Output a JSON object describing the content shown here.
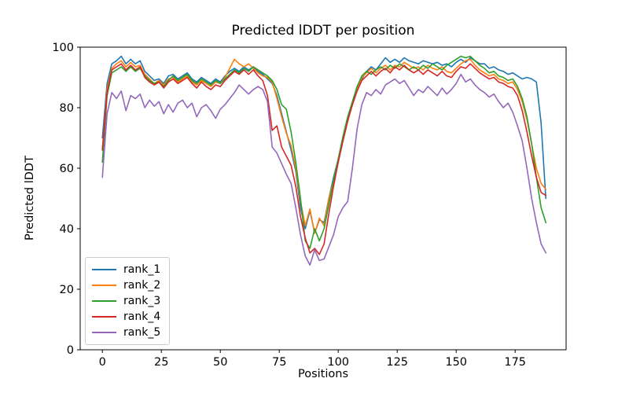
{
  "chart_data": {
    "type": "line",
    "title": "Predicted lDDT per position",
    "xlabel": "Positions",
    "ylabel": "Predicted lDDT",
    "xlim": [
      -9.4,
      196.6
    ],
    "ylim": [
      0,
      100
    ],
    "xticks": [
      0,
      25,
      50,
      75,
      100,
      125,
      150,
      175
    ],
    "yticks": [
      0,
      20,
      40,
      60,
      80,
      100
    ],
    "grid": false,
    "legend_position": "lower-left",
    "x_start": 0,
    "x_step": 2,
    "series": [
      {
        "name": "rank_1",
        "color": "#1f77b4",
        "values": [
          70,
          88,
          94.5,
          95.5,
          97,
          94.5,
          96,
          94.5,
          95.5,
          92,
          90.5,
          89,
          89.5,
          88,
          90.5,
          91,
          89.5,
          90.5,
          91.5,
          89.5,
          88.5,
          90,
          89,
          88,
          89.5,
          88.5,
          90.5,
          92,
          93,
          92,
          93.5,
          92.5,
          93.5,
          92,
          91,
          89.5,
          88,
          84,
          78,
          72,
          66,
          59,
          47,
          40,
          46,
          38.5,
          43,
          42,
          50,
          57,
          63,
          70,
          76,
          81,
          86,
          89.5,
          92,
          93.5,
          92.5,
          94.5,
          96.5,
          95,
          96,
          95,
          96.5,
          95.5,
          95,
          94.5,
          95.5,
          95,
          94.5,
          95,
          94,
          94.5,
          93.5,
          95,
          96,
          95,
          96.5,
          95.5,
          94.5,
          94.5,
          93,
          93.5,
          92.5,
          92,
          91,
          91.5,
          90.5,
          89.5,
          90,
          89.5,
          88.5,
          75,
          50
        ]
      },
      {
        "name": "rank_2",
        "color": "#ff7f0e",
        "values": [
          66,
          86,
          93,
          94.5,
          95.5,
          93.5,
          95,
          93.5,
          94,
          91,
          89.5,
          88,
          89,
          87.5,
          89.5,
          90,
          88.5,
          89.5,
          90.5,
          88.5,
          87.5,
          89,
          88,
          87,
          88.5,
          88,
          90,
          93,
          96,
          94.5,
          93.5,
          94.5,
          93,
          91.5,
          90.5,
          90,
          88.5,
          83,
          77,
          71.5,
          67.5,
          60,
          49,
          41,
          46.5,
          38.5,
          43.5,
          41,
          50,
          56,
          63,
          70,
          76,
          81,
          86,
          90,
          91.5,
          93,
          91.5,
          93,
          94,
          92.5,
          94,
          93.5,
          95,
          94,
          93,
          93.5,
          92.5,
          94,
          93,
          92.5,
          93.5,
          92,
          91.5,
          93,
          94.5,
          95.5,
          96,
          94,
          92.5,
          91.5,
          90.5,
          91,
          89.5,
          89,
          88,
          88.5,
          86,
          82,
          76,
          68,
          60,
          55,
          53
        ]
      },
      {
        "name": "rank_3",
        "color": "#2ca02c",
        "values": [
          62,
          84,
          91.5,
          92.5,
          93.5,
          92,
          93.5,
          92,
          93,
          90.5,
          89,
          88,
          88.5,
          87,
          89,
          90.5,
          89,
          90,
          91,
          89,
          88,
          89.5,
          88.5,
          87.5,
          89,
          88,
          89.5,
          91,
          92.5,
          91.5,
          93,
          92,
          93.5,
          92.5,
          91.5,
          90.5,
          89,
          86,
          81,
          79.5,
          72,
          62,
          50,
          36,
          33.5,
          40,
          36,
          40,
          48,
          56,
          63,
          70.5,
          77,
          82,
          87,
          90.5,
          92,
          91,
          92.5,
          93.5,
          92.5,
          94,
          93,
          94.5,
          93.5,
          92.5,
          93.5,
          92.5,
          94,
          93,
          94.5,
          93.5,
          92.5,
          94,
          95,
          96,
          97,
          96.5,
          97,
          95.5,
          94,
          93,
          91.5,
          92,
          90.5,
          90,
          89,
          89.5,
          87,
          83,
          77,
          68,
          57,
          47,
          42
        ]
      },
      {
        "name": "rank_4",
        "color": "#d62728",
        "values": [
          66,
          85,
          92.5,
          93.5,
          94.5,
          92.5,
          94,
          92.5,
          93.5,
          90,
          88.5,
          87.5,
          88.5,
          86.5,
          88.5,
          89.5,
          88,
          89,
          90,
          88,
          86.5,
          88.5,
          87,
          86,
          87.5,
          87,
          89,
          90.5,
          92,
          91,
          92.5,
          91,
          92.5,
          90.5,
          89,
          84,
          72.5,
          74,
          67,
          64,
          61,
          54,
          44,
          37,
          32,
          33.5,
          31.5,
          35,
          45,
          54,
          62,
          69,
          75.5,
          81,
          85.5,
          89,
          90.5,
          92,
          90.5,
          92,
          93,
          91.5,
          93.5,
          92.5,
          94,
          92.5,
          91.5,
          92.5,
          91,
          92.5,
          91.5,
          90.5,
          92,
          90.5,
          90,
          92,
          93.5,
          93,
          94.5,
          93,
          91.5,
          90.5,
          89.5,
          90,
          88.5,
          88,
          87,
          86.5,
          84,
          79,
          72,
          64,
          57,
          52,
          51
        ]
      },
      {
        "name": "rank_5",
        "color": "#9467bd",
        "values": [
          57,
          78,
          85,
          83,
          85.5,
          79,
          84,
          83,
          84.5,
          80,
          82.5,
          80.5,
          82,
          78,
          81,
          78.5,
          81.5,
          82.5,
          80,
          81.5,
          77,
          80,
          81,
          79,
          76.5,
          79.5,
          81,
          83,
          85,
          87.5,
          86,
          84.5,
          86,
          87,
          86,
          82,
          67,
          65,
          61.5,
          58,
          55,
          47,
          38,
          31,
          28,
          33,
          29.5,
          30,
          34,
          38,
          44,
          47,
          49,
          60,
          73,
          81,
          85,
          84,
          86,
          84.5,
          87.5,
          88.5,
          89.5,
          88,
          89,
          86.5,
          84,
          86,
          85,
          87,
          85.5,
          84,
          86.5,
          84.5,
          86,
          88,
          91,
          88.5,
          89.5,
          87.5,
          86,
          85,
          83.5,
          84.5,
          82,
          80,
          81.5,
          78.5,
          74,
          69,
          60,
          50,
          42,
          35,
          32
        ]
      }
    ]
  }
}
